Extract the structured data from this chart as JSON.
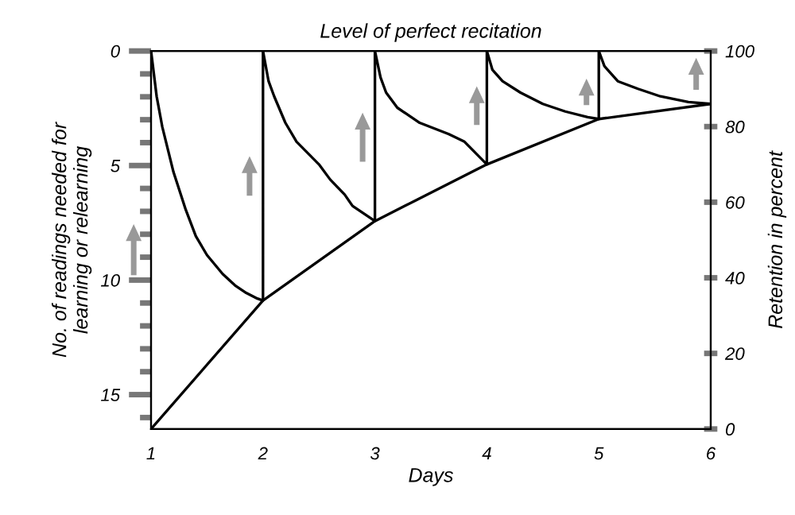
{
  "chart_data": {
    "type": "line",
    "title": "Level of perfect recitation",
    "xlabel": "Days",
    "ylabel": "No. of readings needed for\nlearning or relearning",
    "y2label": "Retention in percent",
    "xlim": [
      1,
      6
    ],
    "xticks": [
      1,
      2,
      3,
      4,
      5,
      6
    ],
    "ylim": [
      16.5,
      0
    ],
    "yticks": [
      0,
      {
        "value": 1,
        "label": null
      },
      {
        "value": 2,
        "label": null
      },
      {
        "value": 3,
        "label": null
      },
      {
        "value": 4,
        "label": null
      },
      5,
      {
        "value": 6,
        "label": null
      },
      {
        "value": 7,
        "label": null
      },
      {
        "value": 8,
        "label": null
      },
      {
        "value": 9,
        "label": null
      },
      10,
      {
        "value": 11,
        "label": null
      },
      {
        "value": 12,
        "label": null
      },
      {
        "value": 13,
        "label": null
      },
      {
        "value": 14,
        "label": null
      },
      15,
      {
        "value": 16,
        "label": null
      }
    ],
    "y2lim": [
      0,
      100
    ],
    "y2ticks": [
      0,
      20,
      40,
      60,
      80,
      100
    ],
    "grid": false,
    "legend": false,
    "marker": "none",
    "line_style": "solid",
    "series": [
      {
        "color": "#000000",
        "axis": "y2",
        "x": [
          1,
          1.05,
          1.1,
          1.2,
          1.31,
          1.4,
          1.5,
          1.64,
          1.75,
          1.85,
          1.95,
          2,
          2,
          2.05,
          2.1,
          2.2,
          2.3,
          2.4,
          2.5,
          2.6,
          2.73,
          2.8,
          2.9,
          3,
          3,
          3.05,
          3.1,
          3.2,
          3.4,
          3.66,
          3.8,
          3.9,
          4,
          4,
          4.05,
          4.14,
          4.3,
          4.5,
          4.7,
          4.9,
          5,
          5,
          5.05,
          5.17,
          5.35,
          5.55,
          5.8,
          6
        ],
        "values": [
          100,
          88,
          80,
          68,
          58,
          51,
          46,
          41,
          38,
          36,
          34.5,
          34,
          100,
          92,
          88,
          81,
          76,
          73,
          70,
          66,
          62,
          59,
          57,
          55,
          100,
          93,
          89,
          85,
          81,
          78,
          76,
          73,
          70,
          100,
          95,
          92,
          89,
          86,
          84,
          82.5,
          82,
          100,
          96,
          92,
          90,
          88,
          86.5,
          86
        ]
      },
      {
        "color": "#000000",
        "axis": "y2",
        "x": [
          1,
          2,
          3,
          4,
          5,
          6
        ],
        "values": [
          0,
          34,
          55,
          70,
          82,
          86
        ]
      }
    ]
  }
}
